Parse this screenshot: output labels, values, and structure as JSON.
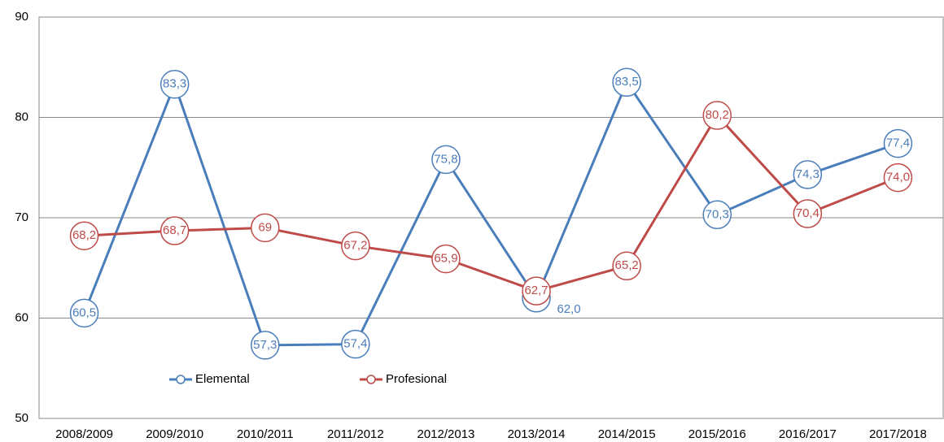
{
  "chart_data": {
    "type": "line",
    "categories": [
      "2008/2009",
      "2009/2010",
      "2010/2011",
      "2011/2012",
      "2012/2013",
      "2013/2014",
      "2014/2015",
      "2015/2016",
      "2016/2017",
      "2017/2018"
    ],
    "series": [
      {
        "name": "Elemental",
        "color": "#4a7ebb",
        "values": [
          60.5,
          83.3,
          57.3,
          57.4,
          75.8,
          62.0,
          83.5,
          70.3,
          74.3,
          77.4
        ],
        "value_labels": [
          "60,5",
          "83,3",
          "57,3",
          "57,4",
          "75,8",
          "62,0",
          "83,5",
          "70,3",
          "74,3",
          "77,4"
        ]
      },
      {
        "name": "Profesional",
        "color": "#be4b48",
        "values": [
          68.2,
          68.7,
          69,
          67.2,
          65.9,
          62.7,
          65.2,
          80.2,
          70.4,
          74.0
        ],
        "value_labels": [
          "68,2",
          "68,7",
          "69",
          "67,2",
          "65,9",
          "62,7",
          "65,2",
          "80,2",
          "70,4",
          "74,0"
        ]
      }
    ],
    "ylim": [
      50,
      90
    ],
    "yticks": [
      50,
      60,
      70,
      80,
      90
    ],
    "grid": true,
    "legend": "lower left"
  }
}
